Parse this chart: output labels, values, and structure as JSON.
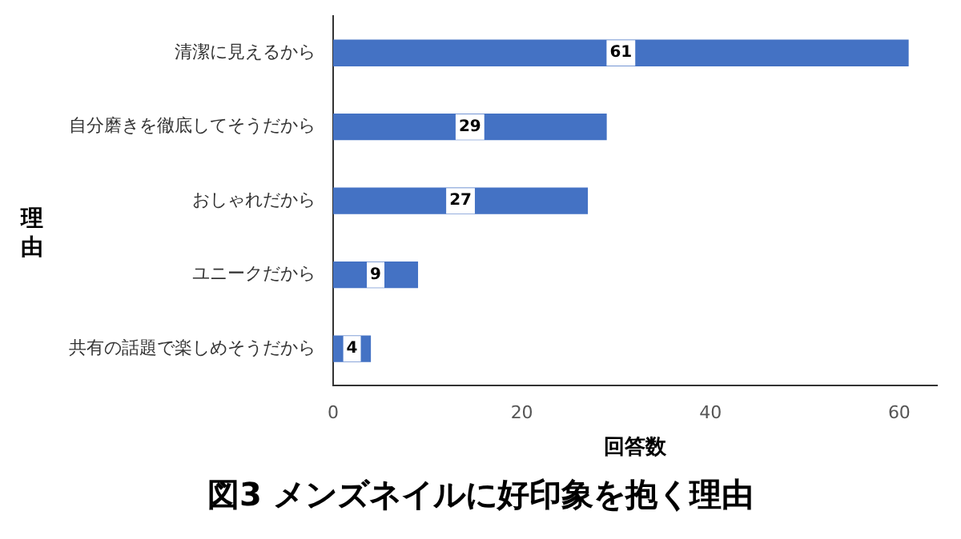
{
  "chart_data": {
    "type": "bar",
    "orientation": "horizontal",
    "title": "図3 メンズネイルに好印象を抱く理由",
    "xlabel": "回答数",
    "ylabel": "理由",
    "categories": [
      "清潔に見えるから",
      "自分磨きを徹底してそうだから",
      "おしゃれだから",
      "ユニークだから",
      "共有の話題で楽しめそうだから"
    ],
    "values": [
      61,
      29,
      27,
      9,
      4
    ],
    "color": "#4472c4",
    "xlim": [
      0,
      64
    ],
    "xticks": [
      0,
      20,
      40,
      60
    ],
    "grid": false,
    "legend": false,
    "data_labels": true
  }
}
